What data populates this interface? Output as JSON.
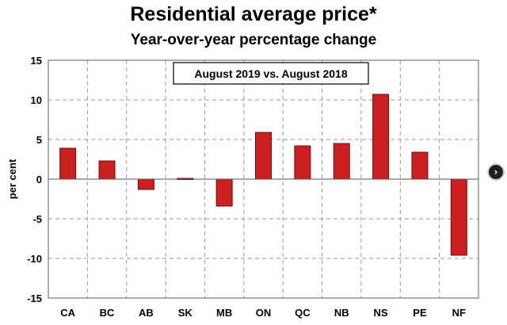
{
  "chart_data": {
    "type": "bar",
    "title": "Residential average price*",
    "subtitle": "Year-over-year percentage change",
    "annotation": "August 2019 vs. August 2018",
    "ylabel": "per cent",
    "xlabel": "",
    "categories": [
      "CA",
      "BC",
      "AB",
      "SK",
      "MB",
      "ON",
      "QC",
      "NB",
      "NS",
      "PE",
      "NF"
    ],
    "values": [
      3.9,
      2.3,
      -1.3,
      0.1,
      -3.4,
      5.9,
      4.2,
      4.5,
      10.7,
      3.4,
      -9.6
    ],
    "ylim": [
      -15,
      15
    ],
    "yticks": [
      15,
      10,
      5,
      0,
      -5,
      -10,
      -15
    ],
    "grid": true,
    "bar_color": "#cc1f1f",
    "bar_edge_color": "#6e0f0f"
  },
  "nav": {
    "next_icon": "chevron-right-icon",
    "next_glyph": "›"
  }
}
